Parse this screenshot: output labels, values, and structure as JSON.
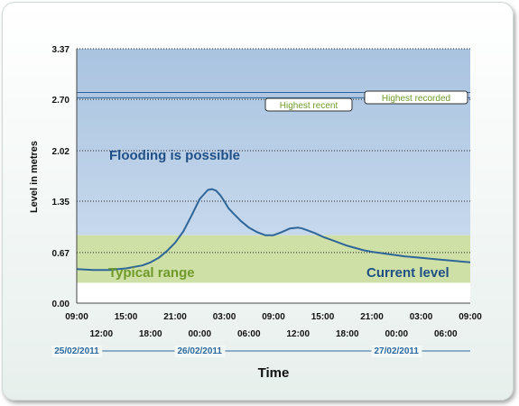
{
  "chart_data": {
    "type": "line",
    "title": "",
    "ylabel": "Level in metres",
    "xlabel": "Time",
    "ylim": [
      0,
      3.37
    ],
    "xlim_hours": [
      0,
      48
    ],
    "yticks": [
      "3.37",
      "2.70",
      "2.02",
      "1.35",
      "0.67",
      "0.00"
    ],
    "ytick_values": [
      3.37,
      2.7,
      2.02,
      1.35,
      0.67,
      0.0
    ],
    "xticks_top": [
      "09:00",
      "15:00",
      "21:00",
      "03:00",
      "09:00",
      "15:00",
      "21:00",
      "03:00",
      "09:00"
    ],
    "xticks_top_hours": [
      0,
      6,
      12,
      18,
      24,
      30,
      36,
      42,
      48
    ],
    "xticks_bottom": [
      "12:00",
      "18:00",
      "00:00",
      "06:00",
      "12:00",
      "18:00",
      "00:00",
      "06:00"
    ],
    "xticks_bottom_hours": [
      3,
      9,
      15,
      21,
      27,
      33,
      39,
      45
    ],
    "dates": [
      {
        "label": "25/02/2011",
        "hour": 0
      },
      {
        "label": "26/02/2011",
        "hour": 15
      },
      {
        "label": "27/02/2011",
        "hour": 39
      }
    ],
    "bands": [
      {
        "name": "Flooding is possible",
        "from": 0.9,
        "to": 3.37,
        "color": "#b7cde6"
      },
      {
        "name": "Typical range",
        "from": 0.27,
        "to": 0.9,
        "color": "#cfe0a6"
      }
    ],
    "reference_lines": [
      {
        "name": "Highest recorded",
        "value": 2.79
      },
      {
        "name": "Highest recent",
        "value": 2.72
      }
    ],
    "series": [
      {
        "name": "Current level",
        "color": "#2f6699",
        "x": [
          0,
          2,
          4,
          6,
          8,
          9,
          10,
          11,
          12,
          13,
          14,
          15,
          16,
          16.5,
          17,
          17.5,
          18,
          18.5,
          19,
          20,
          21,
          22,
          23,
          24,
          25,
          26,
          27,
          27.5,
          28,
          29,
          30,
          31,
          32,
          33,
          34,
          35,
          36,
          38,
          40,
          42,
          44,
          46,
          48
        ],
        "values": [
          0.45,
          0.44,
          0.44,
          0.46,
          0.5,
          0.54,
          0.6,
          0.69,
          0.8,
          0.95,
          1.16,
          1.38,
          1.5,
          1.51,
          1.49,
          1.43,
          1.35,
          1.26,
          1.2,
          1.09,
          1.0,
          0.94,
          0.9,
          0.9,
          0.94,
          0.99,
          1.0,
          0.99,
          0.97,
          0.93,
          0.88,
          0.84,
          0.8,
          0.76,
          0.73,
          0.7,
          0.68,
          0.65,
          0.62,
          0.6,
          0.58,
          0.56,
          0.54
        ]
      }
    ]
  },
  "labels": {
    "flooding": "Flooding is possible",
    "typical": "Typical range",
    "current": "Current level",
    "highest_recorded": "Highest recorded",
    "highest_recent": "Highest recent"
  },
  "colors": {
    "line": "#2f6699",
    "text_blue": "#1f4f86",
    "text_green": "#6f9a2a",
    "grid": "#222222"
  }
}
